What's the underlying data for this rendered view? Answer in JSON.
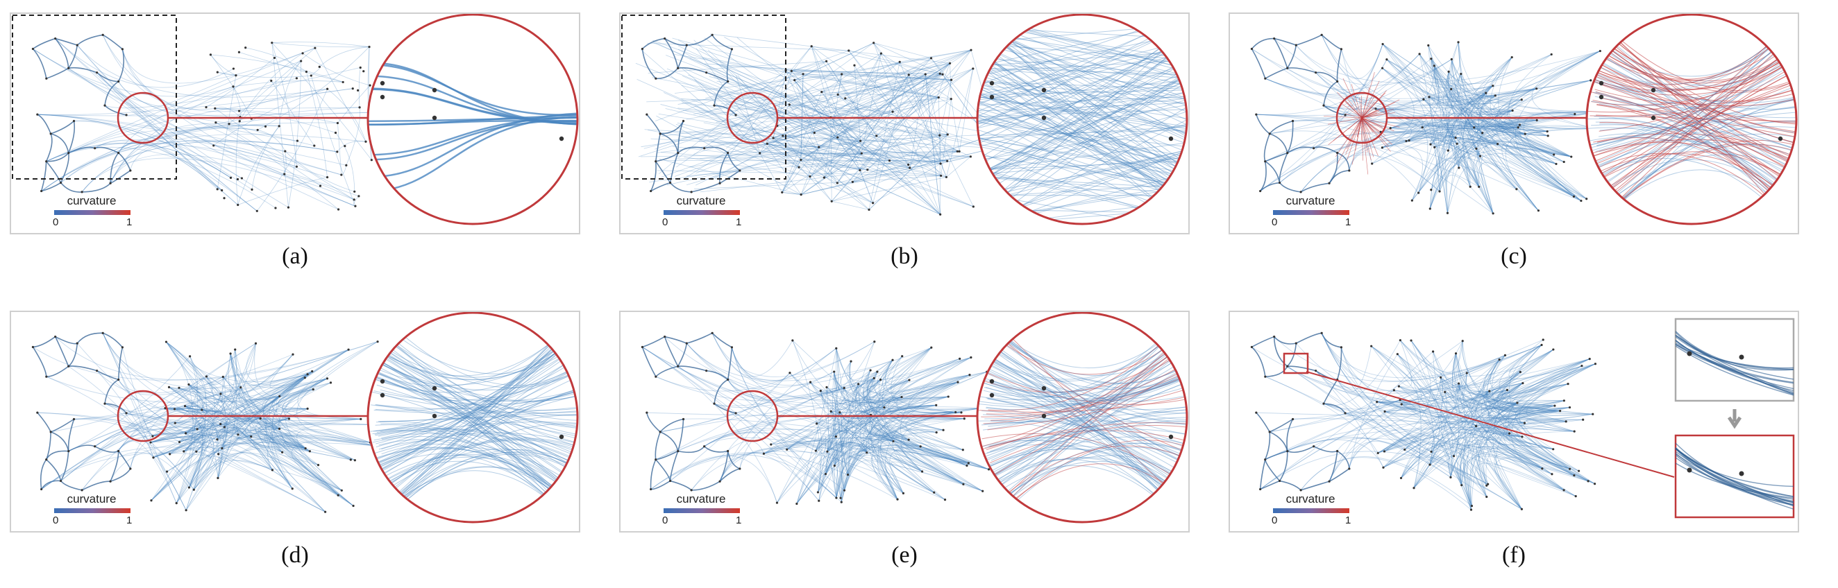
{
  "panels": [
    {
      "id": "a",
      "caption": "(a)",
      "style": "fdeb-sparse",
      "lens": true,
      "box": true,
      "lensStyle": "clean",
      "redFan": false
    },
    {
      "id": "b",
      "caption": "(b)",
      "style": "straight",
      "lens": true,
      "box": true,
      "lensStyle": "straight",
      "redFan": false
    },
    {
      "id": "c",
      "caption": "(c)",
      "style": "hybrid",
      "lens": true,
      "box": false,
      "lensStyle": "redburst",
      "redFan": true
    },
    {
      "id": "d",
      "caption": "(d)",
      "style": "hybrid",
      "lens": true,
      "box": false,
      "lensStyle": "fan",
      "redFan": false
    },
    {
      "id": "e",
      "caption": "(e)",
      "style": "hybrid",
      "lens": true,
      "box": false,
      "lensStyle": "fanred",
      "redFan": false
    },
    {
      "id": "f",
      "caption": "(f)",
      "style": "hybrid",
      "lens": false,
      "box": false,
      "lensStyle": "none",
      "redFan": false,
      "insets": true
    }
  ],
  "colorbar": {
    "label": "curvature",
    "min": "0",
    "max": "1",
    "low_color": "#3b6fb6",
    "high_color": "#d43a2a"
  },
  "colors": {
    "edge": "#4a86c0",
    "edge_dark": "#2f5f93",
    "highlight": "#c0393b",
    "node": "#333333",
    "frame": "#cfcfcf",
    "arrow": "#999999"
  }
}
